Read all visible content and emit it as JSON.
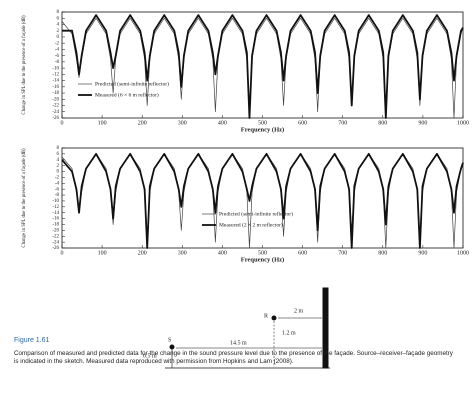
{
  "chart_data": [
    {
      "type": "line",
      "xlabel": "Frequency (Hz)",
      "ylabel": "Change in SPL due to the presence of a façade (dB)",
      "x": [
        0,
        25,
        36,
        42.5,
        49,
        60,
        85,
        110,
        121,
        127.5,
        134,
        145,
        170,
        195,
        206,
        212.5,
        219,
        230,
        255,
        280,
        291,
        297.5,
        304,
        315,
        340,
        365,
        376,
        382.5,
        389,
        400,
        425,
        450,
        461,
        467.5,
        474,
        485,
        510,
        535,
        546,
        552.5,
        559,
        570,
        595,
        620,
        631,
        637.5,
        644,
        655,
        680,
        705,
        716,
        722.5,
        729,
        740,
        765,
        790,
        801,
        807.5,
        814,
        825,
        850,
        875,
        886,
        892.5,
        899,
        910,
        935,
        960,
        971,
        977.5,
        984,
        995,
        1000
      ],
      "series": [
        {
          "name": "Predicted (semi-infinite reflector)",
          "color": "#444444",
          "line_width": 0.7,
          "values": [
            5,
            1,
            -7,
            -13,
            -7,
            1,
            6,
            1,
            -7,
            -18,
            -7,
            1,
            6,
            1,
            -7,
            -22,
            -7,
            1,
            6,
            1,
            -7,
            -20,
            -7,
            1,
            6,
            1,
            -7,
            -24,
            -7,
            1,
            6,
            1,
            -7,
            -26,
            -7,
            1,
            6,
            1,
            -7,
            -22,
            -7,
            1,
            6,
            1,
            -7,
            -24,
            -7,
            1,
            6,
            1,
            -7,
            -20,
            -7,
            1,
            6,
            1,
            -7,
            -26,
            -7,
            1,
            6,
            1,
            -7,
            -22,
            -7,
            1,
            6,
            1,
            -7,
            -26,
            -7,
            1,
            3
          ]
        },
        {
          "name": "Measured (6 × 6 m reflector)",
          "color": "#111111",
          "line_width": 1.8,
          "values": [
            2,
            2,
            -5,
            -12,
            -6,
            2,
            7,
            2,
            -5,
            -10,
            -6,
            2,
            7,
            2,
            -5,
            -14,
            -6,
            2,
            7,
            2,
            -5,
            -16,
            -6,
            2,
            7,
            2,
            -5,
            -12,
            -6,
            2,
            7,
            2,
            -5,
            -26,
            -6,
            2,
            7,
            2,
            -5,
            -14,
            -6,
            2,
            7,
            2,
            -5,
            -18,
            -6,
            2,
            7,
            2,
            -5,
            -22,
            -6,
            2,
            7,
            2,
            -5,
            -26,
            -6,
            2,
            7,
            2,
            -5,
            -20,
            -6,
            2,
            7,
            2,
            -5,
            -14,
            -6,
            2,
            3
          ]
        }
      ],
      "xlim": [
        0,
        1000
      ],
      "ylim": [
        -26,
        8
      ],
      "xticks": [
        0,
        100,
        200,
        300,
        400,
        500,
        600,
        700,
        800,
        900,
        1000
      ],
      "yticks": [
        8,
        6,
        4,
        2,
        0,
        -2,
        -4,
        -6,
        -8,
        -10,
        -12,
        -14,
        -16,
        -18,
        -20,
        -22,
        -24,
        -26
      ],
      "legend": "lower left"
    },
    {
      "type": "line",
      "xlabel": "Frequency (Hz)",
      "ylabel": "Change in SPL due to the presence of a façade (dB)",
      "x": [
        0,
        25,
        36,
        42.5,
        49,
        60,
        85,
        110,
        121,
        127.5,
        134,
        145,
        170,
        195,
        206,
        212.5,
        219,
        230,
        255,
        280,
        291,
        297.5,
        304,
        315,
        340,
        365,
        376,
        382.5,
        389,
        400,
        425,
        450,
        461,
        467.5,
        474,
        485,
        510,
        535,
        546,
        552.5,
        559,
        570,
        595,
        620,
        631,
        637.5,
        644,
        655,
        680,
        705,
        716,
        722.5,
        729,
        740,
        765,
        790,
        801,
        807.5,
        814,
        825,
        850,
        875,
        886,
        892.5,
        899,
        910,
        935,
        960,
        971,
        977.5,
        984,
        995,
        1000
      ],
      "series": [
        {
          "name": "Predicted (semi-infinite reflector)",
          "color": "#444444",
          "line_width": 0.7,
          "values": [
            5,
            1,
            -7,
            -13,
            -7,
            1,
            6,
            1,
            -7,
            -18,
            -7,
            1,
            6,
            1,
            -7,
            -22,
            -7,
            1,
            6,
            1,
            -7,
            -20,
            -7,
            1,
            6,
            1,
            -7,
            -24,
            -7,
            1,
            6,
            1,
            -7,
            -26,
            -7,
            1,
            6,
            1,
            -7,
            -22,
            -7,
            1,
            6,
            1,
            -7,
            -24,
            -7,
            1,
            6,
            1,
            -7,
            -20,
            -7,
            1,
            6,
            1,
            -7,
            -26,
            -7,
            1,
            6,
            1,
            -7,
            -22,
            -7,
            1,
            6,
            1,
            -7,
            -26,
            -7,
            1,
            3
          ]
        },
        {
          "name": "Measured (2 × 2 m reflector)",
          "color": "#111111",
          "line_width": 1.8,
          "values": [
            4,
            0,
            -6,
            -14,
            -5,
            1,
            6,
            0,
            -6,
            -16,
            -5,
            1,
            6,
            0,
            -6,
            -26,
            -5,
            1,
            6,
            0,
            -6,
            -12,
            -5,
            1,
            6,
            0,
            -6,
            -14,
            -5,
            1,
            6,
            0,
            -6,
            -10,
            -5,
            1,
            6,
            0,
            -6,
            -16,
            -5,
            1,
            6,
            0,
            -6,
            -20,
            -5,
            1,
            6,
            0,
            -6,
            -26,
            -5,
            1,
            6,
            0,
            -6,
            -18,
            -5,
            1,
            6,
            0,
            -6,
            -26,
            -5,
            1,
            6,
            0,
            -6,
            -14,
            -5,
            1,
            3
          ]
        }
      ],
      "xlim": [
        0,
        1000
      ],
      "ylim": [
        -26,
        8
      ],
      "xticks": [
        0,
        100,
        200,
        300,
        400,
        500,
        600,
        700,
        800,
        900,
        1000
      ],
      "yticks": [
        8,
        6,
        4,
        2,
        0,
        -2,
        -4,
        -6,
        -8,
        -10,
        -12,
        -14,
        -16,
        -18,
        -20,
        -22,
        -24,
        -26
      ],
      "legend": "lower center"
    }
  ],
  "sketch": {
    "source": "S",
    "receiver": "R",
    "source_height": "0.5 m",
    "distance": "14.5 m",
    "receiver_height": "1.2 m",
    "wall_distance": "2 m"
  },
  "figure": {
    "label": "Figure 1.61",
    "caption": "Comparison of measured and predicted data for the change in the sound pressure level due to the presence of the façade. Source–receiver–façade geometry is indicated in the sketch. Measured data reproduced with permission from Hopkins and Lam (2008)."
  }
}
